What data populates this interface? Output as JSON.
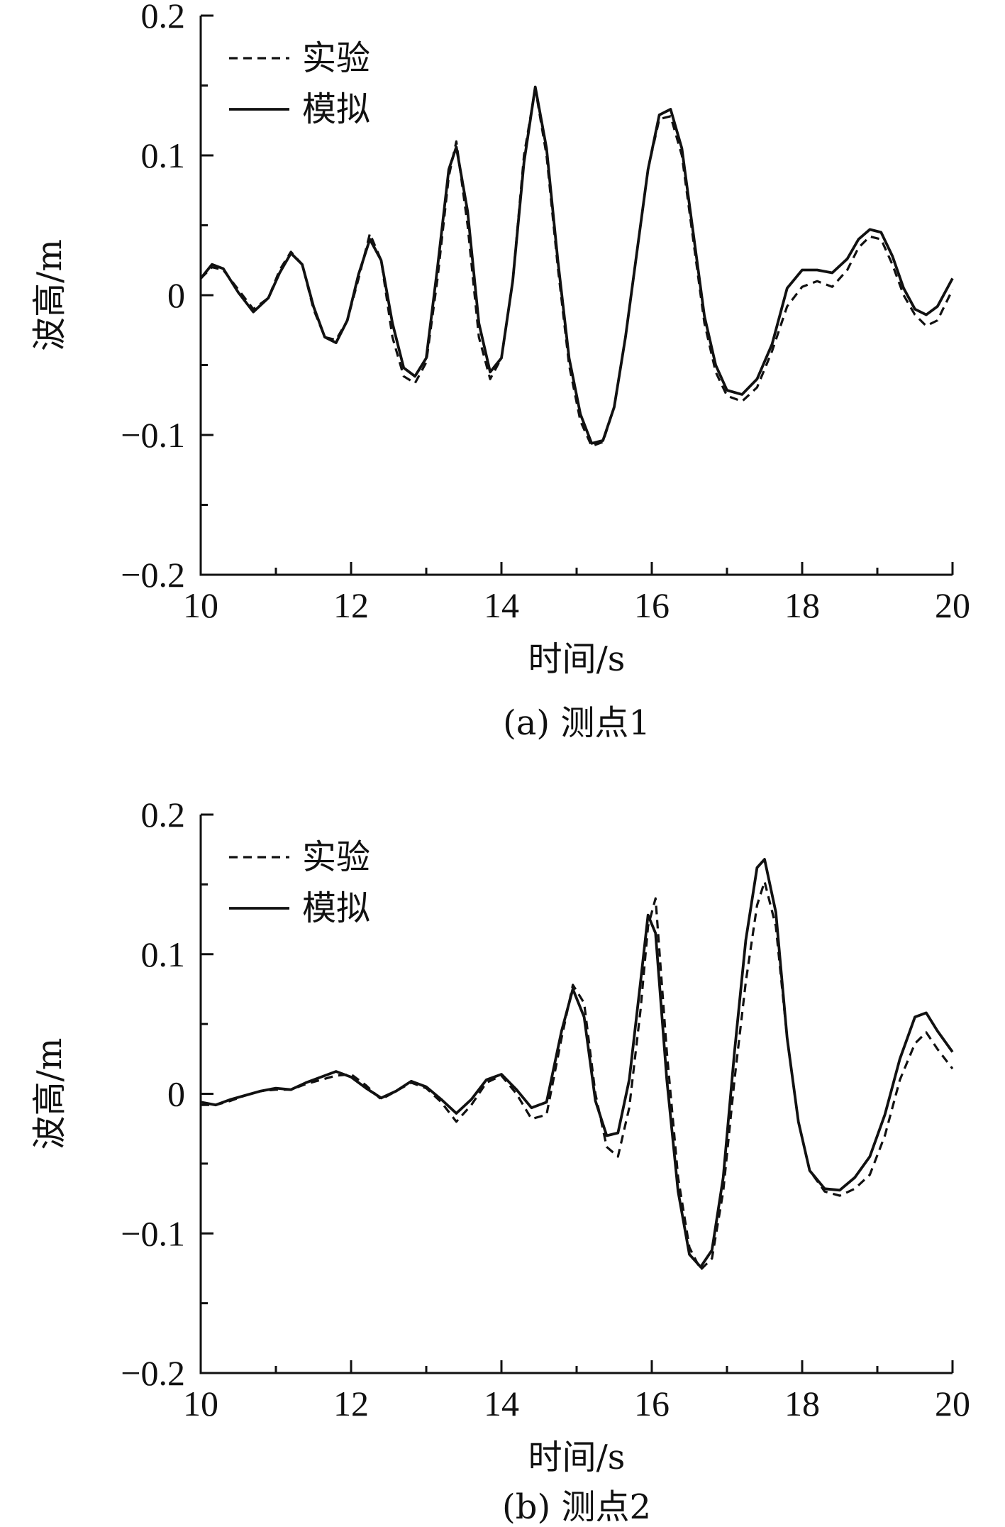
{
  "chart_data": [
    {
      "type": "line",
      "caption": "(a) 测点1",
      "xlabel": "时间/s",
      "ylabel": "波高/m",
      "xlim": [
        10,
        20
      ],
      "ylim": [
        -0.2,
        0.2
      ],
      "xticks": [
        "10",
        "12",
        "14",
        "16",
        "18",
        "20"
      ],
      "yticks": [
        "0.2",
        "0.1",
        "0",
        "−0.1",
        "−0.2"
      ],
      "legend_position": "top-left",
      "series": [
        {
          "name": "实验",
          "style": "dashed",
          "x": [
            10.0,
            10.15,
            10.3,
            10.5,
            10.7,
            10.9,
            11.05,
            11.2,
            11.35,
            11.5,
            11.65,
            11.8,
            11.95,
            12.1,
            12.25,
            12.4,
            12.55,
            12.7,
            12.85,
            13.0,
            13.15,
            13.3,
            13.4,
            13.55,
            13.7,
            13.85,
            14.0,
            14.15,
            14.3,
            14.45,
            14.6,
            14.75,
            14.9,
            15.05,
            15.2,
            15.35,
            15.5,
            15.65,
            15.8,
            15.95,
            16.1,
            16.25,
            16.4,
            16.55,
            16.7,
            16.85,
            17.0,
            17.2,
            17.4,
            17.6,
            17.8,
            18.0,
            18.2,
            18.4,
            18.6,
            18.75,
            18.9,
            19.05,
            19.2,
            19.35,
            19.5,
            19.65,
            19.8,
            20.0
          ],
          "y": [
            0.012,
            0.02,
            0.018,
            0.004,
            -0.01,
            -0.002,
            0.018,
            0.031,
            0.022,
            -0.01,
            -0.03,
            -0.032,
            -0.018,
            0.012,
            0.044,
            0.025,
            -0.03,
            -0.058,
            -0.063,
            -0.048,
            0.012,
            0.085,
            0.11,
            0.05,
            -0.03,
            -0.06,
            -0.045,
            0.01,
            0.1,
            0.148,
            0.1,
            0.02,
            -0.05,
            -0.09,
            -0.108,
            -0.105,
            -0.08,
            -0.03,
            0.03,
            0.09,
            0.126,
            0.128,
            0.1,
            0.04,
            -0.02,
            -0.055,
            -0.072,
            -0.076,
            -0.066,
            -0.04,
            -0.008,
            0.006,
            0.01,
            0.006,
            0.018,
            0.034,
            0.042,
            0.04,
            0.022,
            0.0,
            -0.014,
            -0.022,
            -0.018,
            0.004
          ]
        },
        {
          "name": "模拟",
          "style": "solid",
          "x": [
            10.0,
            10.15,
            10.3,
            10.5,
            10.7,
            10.9,
            11.05,
            11.2,
            11.35,
            11.5,
            11.65,
            11.8,
            11.95,
            12.1,
            12.25,
            12.4,
            12.55,
            12.7,
            12.85,
            13.0,
            13.15,
            13.3,
            13.4,
            13.55,
            13.7,
            13.85,
            14.0,
            14.15,
            14.3,
            14.45,
            14.6,
            14.75,
            14.9,
            15.05,
            15.2,
            15.35,
            15.5,
            15.65,
            15.8,
            15.95,
            16.1,
            16.25,
            16.4,
            16.55,
            16.7,
            16.85,
            17.0,
            17.2,
            17.4,
            17.6,
            17.8,
            18.0,
            18.2,
            18.4,
            18.6,
            18.75,
            18.9,
            19.05,
            19.2,
            19.35,
            19.5,
            19.65,
            19.8,
            20.0
          ],
          "y": [
            0.012,
            0.022,
            0.019,
            0.002,
            -0.012,
            -0.002,
            0.016,
            0.03,
            0.022,
            -0.008,
            -0.03,
            -0.034,
            -0.018,
            0.015,
            0.04,
            0.025,
            -0.02,
            -0.052,
            -0.058,
            -0.045,
            0.02,
            0.09,
            0.106,
            0.06,
            -0.02,
            -0.055,
            -0.045,
            0.01,
            0.095,
            0.149,
            0.105,
            0.025,
            -0.045,
            -0.085,
            -0.106,
            -0.104,
            -0.08,
            -0.03,
            0.03,
            0.09,
            0.129,
            0.133,
            0.105,
            0.045,
            -0.015,
            -0.05,
            -0.068,
            -0.071,
            -0.06,
            -0.035,
            0.005,
            0.018,
            0.018,
            0.016,
            0.026,
            0.04,
            0.047,
            0.045,
            0.028,
            0.005,
            -0.01,
            -0.014,
            -0.008,
            0.012
          ]
        }
      ]
    },
    {
      "type": "line",
      "caption": "(b) 测点2",
      "xlabel": "时间/s",
      "ylabel": "波高/m",
      "xlim": [
        10,
        20
      ],
      "ylim": [
        -0.2,
        0.2
      ],
      "xticks": [
        "10",
        "12",
        "14",
        "16",
        "18",
        "20"
      ],
      "yticks": [
        "0.2",
        "0.1",
        "0",
        "−0.1",
        "−0.2"
      ],
      "legend_position": "top-left",
      "series": [
        {
          "name": "实验",
          "style": "dashed",
          "x": [
            10.0,
            10.2,
            10.4,
            10.6,
            10.8,
            11.0,
            11.2,
            11.4,
            11.6,
            11.8,
            12.0,
            12.2,
            12.4,
            12.6,
            12.8,
            13.0,
            13.2,
            13.4,
            13.6,
            13.8,
            14.0,
            14.2,
            14.4,
            14.6,
            14.8,
            14.95,
            15.1,
            15.25,
            15.4,
            15.55,
            15.7,
            15.85,
            15.95,
            16.05,
            16.2,
            16.35,
            16.5,
            16.65,
            16.8,
            16.95,
            17.1,
            17.25,
            17.4,
            17.5,
            17.65,
            17.8,
            17.95,
            18.1,
            18.3,
            18.5,
            18.7,
            18.9,
            19.1,
            19.3,
            19.5,
            19.65,
            19.8,
            20.0
          ],
          "y": [
            -0.008,
            -0.008,
            -0.005,
            -0.001,
            0.002,
            0.003,
            0.003,
            0.007,
            0.01,
            0.013,
            0.014,
            0.006,
            -0.004,
            0.002,
            0.008,
            0.004,
            -0.006,
            -0.02,
            -0.008,
            0.008,
            0.013,
            0.0,
            -0.018,
            -0.015,
            0.04,
            0.078,
            0.065,
            0.0,
            -0.038,
            -0.045,
            -0.01,
            0.06,
            0.12,
            0.14,
            0.03,
            -0.06,
            -0.11,
            -0.126,
            -0.118,
            -0.07,
            0.01,
            0.08,
            0.135,
            0.152,
            0.12,
            0.04,
            -0.02,
            -0.055,
            -0.07,
            -0.073,
            -0.068,
            -0.058,
            -0.03,
            0.01,
            0.036,
            0.044,
            0.032,
            0.018
          ]
        },
        {
          "name": "模拟",
          "style": "solid",
          "x": [
            10.0,
            10.2,
            10.4,
            10.6,
            10.8,
            11.0,
            11.2,
            11.4,
            11.6,
            11.8,
            12.0,
            12.2,
            12.4,
            12.6,
            12.8,
            13.0,
            13.2,
            13.4,
            13.6,
            13.8,
            14.0,
            14.2,
            14.4,
            14.6,
            14.8,
            14.95,
            15.1,
            15.25,
            15.4,
            15.55,
            15.7,
            15.85,
            15.95,
            16.05,
            16.2,
            16.35,
            16.5,
            16.65,
            16.8,
            16.95,
            17.1,
            17.25,
            17.4,
            17.5,
            17.65,
            17.8,
            17.95,
            18.1,
            18.3,
            18.5,
            18.7,
            18.9,
            19.1,
            19.3,
            19.5,
            19.65,
            19.8,
            20.0
          ],
          "y": [
            -0.006,
            -0.008,
            -0.004,
            -0.001,
            0.002,
            0.004,
            0.003,
            0.008,
            0.012,
            0.016,
            0.012,
            0.004,
            -0.003,
            0.002,
            0.009,
            0.005,
            -0.004,
            -0.014,
            -0.004,
            0.01,
            0.014,
            0.003,
            -0.01,
            -0.006,
            0.045,
            0.075,
            0.055,
            -0.005,
            -0.03,
            -0.028,
            0.01,
            0.08,
            0.128,
            0.115,
            0.01,
            -0.07,
            -0.115,
            -0.124,
            -0.112,
            -0.06,
            0.03,
            0.11,
            0.162,
            0.168,
            0.13,
            0.04,
            -0.02,
            -0.055,
            -0.068,
            -0.069,
            -0.06,
            -0.045,
            -0.015,
            0.025,
            0.055,
            0.058,
            0.045,
            0.03
          ]
        }
      ]
    }
  ]
}
